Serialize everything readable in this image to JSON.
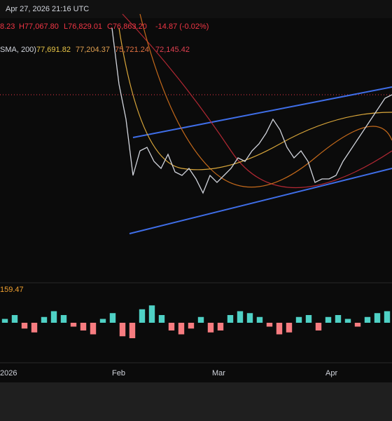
{
  "header": {
    "datetime": "Apr 27, 2026 21:16 UTC",
    "ohlc": [
      "8.23",
      "H77,067.80",
      "L76,829.01",
      "C76,863.20",
      "-14.87 (-0.02%)"
    ],
    "indicator": {
      "name": "SMA, 200)",
      "values": [
        "77,691.82",
        "77,204.37",
        "75,721.24",
        "72,145.42"
      ]
    },
    "oscillator_label": "159.47"
  },
  "x_labels": [
    "2026",
    "Feb",
    "Mar",
    "Apr"
  ],
  "chart_data": {
    "type": "line",
    "ylim": [
      50400,
      90400
    ],
    "color": "#d1d4dc",
    "values": [
      86400,
      78400,
      73400,
      65400,
      68900,
      69400,
      67400,
      66400,
      68400,
      65900,
      65400,
      66400,
      64900,
      62900,
      65400,
      64400,
      65400,
      66400,
      67900,
      67400,
      68900,
      69900,
      71400,
      73400,
      71900,
      69400,
      67900,
      68900,
      67400,
      64400,
      64900,
      64900,
      65400,
      67400,
      68900,
      70400,
      71900,
      73400,
      74900,
      76400,
      76900
    ],
    "oscillator": {
      "ylim": [
        -100,
        100
      ],
      "up_color": "#4fd1c5",
      "down_color": "#f77c80",
      "values": [
        10,
        20,
        -15,
        -25,
        15,
        30,
        20,
        -10,
        -20,
        -30,
        10,
        25,
        -35,
        -40,
        35,
        45,
        20,
        -20,
        -30,
        -15,
        15,
        -25,
        -20,
        20,
        30,
        25,
        15,
        -10,
        -30,
        -25,
        15,
        20,
        -20,
        15,
        20,
        10,
        -10,
        15,
        25,
        30
      ]
    }
  }
}
